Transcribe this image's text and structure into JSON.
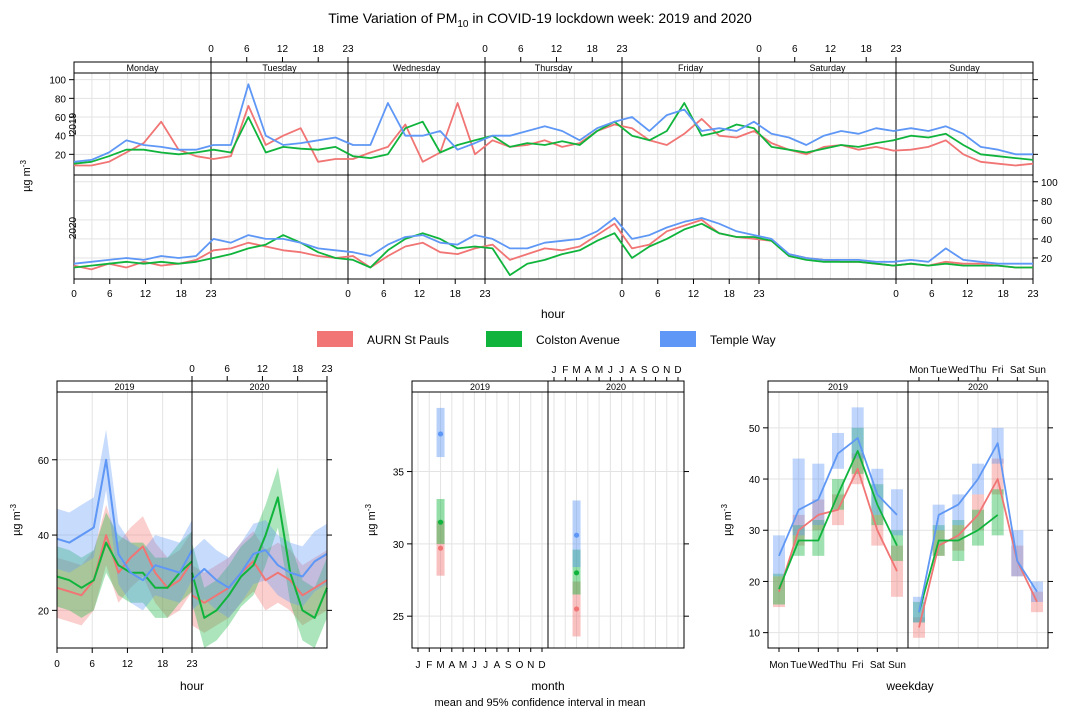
{
  "title": {
    "prefix": "Time Variation of PM",
    "sub": "10",
    "suffix": " in COVID-19 lockdown week: 2019 and 2020"
  },
  "colors": {
    "AURN St Pauls": "#f07574",
    "Colston Avenue": "#10b43c",
    "Temple Way": "#5e97f5"
  },
  "legend": [
    "AURN St Pauls",
    "Colston Avenue",
    "Temple Way"
  ],
  "chart_data": [
    {
      "type": "line",
      "panel": "top",
      "ylabel": "µg m⁻³",
      "xlabel": "hour",
      "ylim": [
        0,
        105
      ],
      "yticks": [
        20,
        40,
        60,
        80,
        100
      ],
      "hour_ticks": [
        "0",
        "6",
        "12",
        "18",
        "23"
      ],
      "days": [
        "Monday",
        "Tuesday",
        "Wednesday",
        "Thursday",
        "Friday",
        "Saturday",
        "Sunday"
      ],
      "years": [
        "2019",
        "2020"
      ],
      "x_desc": "points every 3 hours across the week (8 per day)",
      "series_2019": [
        {
          "name": "AURN St Pauls",
          "values": [
            8,
            8,
            12,
            22,
            32,
            55,
            25,
            18,
            15,
            18,
            72,
            30,
            40,
            48,
            12,
            15,
            15,
            22,
            28,
            52,
            12,
            22,
            75,
            20,
            35,
            28,
            30,
            35,
            28,
            32,
            45,
            52,
            48,
            35,
            30,
            42,
            58,
            40,
            38,
            45,
            32,
            25,
            20,
            28,
            30,
            25,
            28,
            24,
            25,
            28,
            35,
            20,
            12,
            10,
            8,
            10
          ]
        },
        {
          "name": "Colston Avenue",
          "values": [
            10,
            12,
            18,
            25,
            25,
            22,
            20,
            22,
            25,
            22,
            60,
            22,
            28,
            26,
            25,
            28,
            18,
            16,
            20,
            48,
            55,
            22,
            30,
            35,
            40,
            28,
            32,
            30,
            34,
            30,
            45,
            55,
            40,
            35,
            45,
            75,
            40,
            44,
            52,
            48,
            28,
            25,
            22,
            26,
            30,
            28,
            32,
            35,
            40,
            38,
            42,
            30,
            20,
            18,
            16,
            14
          ]
        },
        {
          "name": "Temple Way",
          "values": [
            12,
            14,
            22,
            35,
            30,
            28,
            25,
            25,
            30,
            30,
            95,
            40,
            30,
            32,
            35,
            38,
            30,
            30,
            75,
            40,
            40,
            45,
            25,
            32,
            40,
            40,
            45,
            50,
            45,
            35,
            48,
            55,
            60,
            45,
            62,
            68,
            45,
            48,
            45,
            55,
            42,
            38,
            30,
            40,
            45,
            42,
            48,
            45,
            48,
            45,
            50,
            42,
            28,
            25,
            20,
            20
          ]
        }
      ],
      "series_2020": [
        {
          "name": "AURN St Pauls",
          "values": [
            12,
            8,
            14,
            10,
            16,
            12,
            14,
            18,
            28,
            30,
            36,
            32,
            28,
            26,
            22,
            20,
            22,
            10,
            22,
            32,
            36,
            26,
            24,
            30,
            34,
            18,
            24,
            30,
            28,
            32,
            44,
            56,
            30,
            34,
            48,
            54,
            60,
            46,
            42,
            40,
            38,
            24,
            20,
            18,
            16,
            16,
            14,
            12,
            14,
            12,
            16,
            14,
            14,
            12,
            10,
            10
          ]
        },
        {
          "name": "Colston Avenue",
          "values": [
            10,
            12,
            14,
            16,
            14,
            16,
            14,
            16,
            20,
            24,
            30,
            34,
            44,
            36,
            26,
            20,
            18,
            10,
            28,
            40,
            46,
            40,
            30,
            32,
            30,
            2,
            14,
            18,
            24,
            28,
            38,
            46,
            20,
            32,
            40,
            50,
            56,
            46,
            42,
            42,
            38,
            22,
            18,
            16,
            16,
            16,
            14,
            12,
            14,
            12,
            14,
            12,
            12,
            12,
            10,
            10
          ]
        },
        {
          "name": "Temple Way",
          "values": [
            14,
            16,
            18,
            20,
            18,
            22,
            20,
            22,
            40,
            36,
            44,
            40,
            40,
            36,
            30,
            28,
            26,
            22,
            34,
            42,
            44,
            36,
            34,
            44,
            40,
            30,
            30,
            36,
            38,
            40,
            48,
            62,
            40,
            44,
            52,
            58,
            62,
            56,
            48,
            44,
            40,
            24,
            20,
            18,
            18,
            18,
            16,
            16,
            18,
            16,
            30,
            18,
            16,
            14,
            14,
            14
          ]
        }
      ]
    },
    {
      "type": "line",
      "panel": "bottom-left",
      "xlabel": "hour",
      "ylabel": "µg m⁻³",
      "ylim": [
        10,
        78
      ],
      "yticks": [
        20,
        40,
        60
      ],
      "x": [
        0,
        2,
        4,
        6,
        8,
        10,
        12,
        14,
        16,
        18,
        20,
        22
      ],
      "hour_ticks": [
        "0",
        "6",
        "12",
        "18",
        "23"
      ],
      "years": [
        "2019",
        "2020"
      ],
      "series_2019": [
        {
          "name": "AURN St Pauls",
          "values": [
            26,
            25,
            24,
            28,
            40,
            30,
            34,
            37,
            30,
            26,
            28,
            33
          ]
        },
        {
          "name": "Colston Avenue",
          "values": [
            29,
            28,
            26,
            28,
            38,
            32,
            30,
            30,
            26,
            26,
            30,
            33
          ]
        },
        {
          "name": "Temple Way",
          "values": [
            39,
            38,
            40,
            42,
            60,
            35,
            30,
            28,
            32,
            31,
            30,
            36
          ]
        }
      ],
      "series_2020": [
        {
          "name": "AURN St Pauls",
          "values": [
            24,
            22,
            24,
            26,
            30,
            33,
            28,
            30,
            28,
            24,
            26,
            28
          ]
        },
        {
          "name": "Colston Avenue",
          "values": [
            30,
            18,
            20,
            24,
            29,
            32,
            40,
            50,
            30,
            20,
            18,
            26
          ]
        },
        {
          "name": "Temple Way",
          "values": [
            28,
            31,
            28,
            26,
            30,
            35,
            36,
            32,
            30,
            29,
            33,
            35
          ]
        }
      ]
    },
    {
      "type": "scatter",
      "panel": "bottom-center",
      "xlabel": "month",
      "ylabel": "µg m⁻³",
      "subtitle": "mean and 95% confidence interval in mean",
      "ylim": [
        22.8,
        40.5
      ],
      "yticks": [
        25,
        30,
        35
      ],
      "months": [
        "J",
        "F",
        "M",
        "A",
        "M",
        "J",
        "J",
        "A",
        "S",
        "O",
        "N",
        "D"
      ],
      "years": [
        "2019",
        "2020"
      ],
      "month_index": 3,
      "series": [
        {
          "name": "AURN St Pauls",
          "mean_2019": 29.7,
          "ci_2019": [
            27.8,
            31.6
          ],
          "mean_2020": 25.5,
          "ci_2020": [
            23.6,
            27.4
          ]
        },
        {
          "name": "Colston Avenue",
          "mean_2019": 31.5,
          "ci_2019": [
            30.0,
            33.1
          ],
          "mean_2020": 28.0,
          "ci_2020": [
            26.5,
            29.6
          ]
        },
        {
          "name": "Temple Way",
          "mean_2019": 37.6,
          "ci_2019": [
            36.0,
            39.4
          ],
          "mean_2020": 30.6,
          "ci_2020": [
            28.4,
            33.0
          ]
        }
      ]
    },
    {
      "type": "line",
      "panel": "bottom-right",
      "xlabel": "weekday",
      "ylabel": "µg m⁻³",
      "ylim": [
        7,
        57
      ],
      "yticks": [
        10,
        20,
        30,
        40,
        50
      ],
      "weekdays": [
        "Mon",
        "Tue",
        "Wed",
        "Thu",
        "Fri",
        "Sat",
        "Sun"
      ],
      "years": [
        "2019",
        "2020"
      ],
      "series_2019": [
        {
          "name": "AURN St Pauls",
          "values": [
            18,
            30,
            33,
            34,
            42,
            30,
            22
          ],
          "ci": [
            [
              15,
              21
            ],
            [
              27,
              33
            ],
            [
              30,
              36
            ],
            [
              31,
              37
            ],
            [
              39,
              45
            ],
            [
              27,
              33
            ],
            [
              17,
              27
            ]
          ]
        },
        {
          "name": "Colston Avenue",
          "values": [
            18.5,
            28,
            28,
            37,
            45.5,
            35,
            27
          ],
          "ci": [
            [
              15.5,
              21.5
            ],
            [
              25,
              31
            ],
            [
              25,
              32
            ],
            [
              34,
              40
            ],
            [
              41,
              50
            ],
            [
              31,
              39
            ],
            [
              24,
              30
            ]
          ]
        },
        {
          "name": "Temple Way",
          "values": [
            25,
            34,
            36,
            45,
            48,
            37,
            33
          ],
          "ci": [
            [
              21,
              29
            ],
            [
              29,
              44
            ],
            [
              31,
              43
            ],
            [
              42,
              49
            ],
            [
              44,
              54
            ],
            [
              33,
              42
            ],
            [
              29,
              38
            ]
          ]
        }
      ],
      "series_2020": [
        {
          "name": "AURN St Pauls",
          "values": [
            11,
            27,
            29,
            33,
            40,
            24,
            16
          ],
          "ci": [
            [
              9,
              13
            ],
            [
              25,
              30
            ],
            [
              26,
              31
            ],
            [
              30,
              37
            ],
            [
              37,
              44
            ],
            [
              21,
              27
            ],
            [
              14,
              18
            ]
          ]
        },
        {
          "name": "Colston Avenue",
          "values": [
            14,
            28,
            28,
            30,
            33,
            null,
            null
          ],
          "ci": [
            [
              12,
              16
            ],
            [
              25,
              31
            ],
            [
              24,
              32
            ],
            [
              27,
              34
            ],
            [
              29,
              38
            ],
            null,
            null
          ]
        },
        {
          "name": "Temple Way",
          "values": [
            14,
            33,
            35,
            40,
            47,
            24,
            18
          ],
          "ci": [
            [
              12,
              17
            ],
            [
              30,
              35
            ],
            [
              31,
              37
            ],
            [
              37,
              43
            ],
            [
              43,
              50
            ],
            [
              21,
              30
            ],
            [
              16,
              20
            ]
          ]
        }
      ]
    }
  ]
}
